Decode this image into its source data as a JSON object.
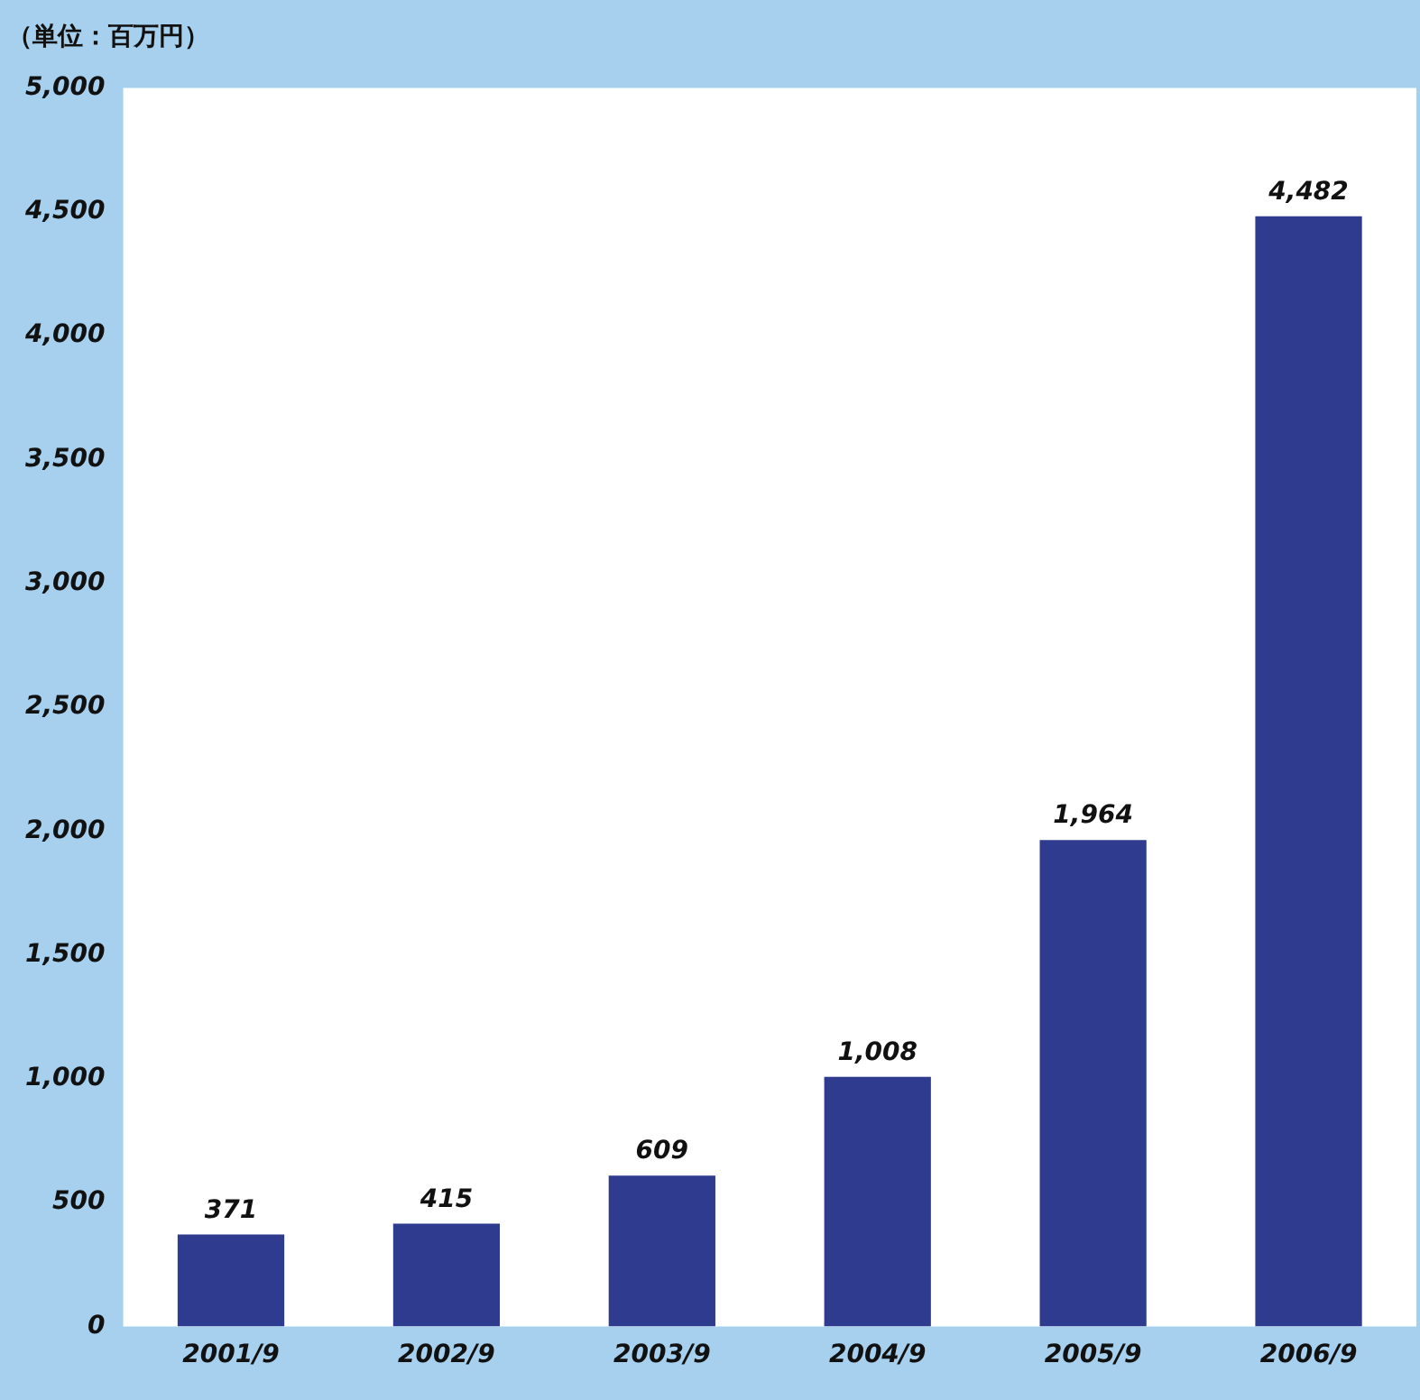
{
  "chart_data": {
    "type": "bar",
    "title": "（単位：百万円）",
    "categories": [
      "2001/9",
      "2002/9",
      "2003/9",
      "2004/9",
      "2005/9",
      "2006/9"
    ],
    "values": [
      371,
      415,
      609,
      1008,
      1964,
      4482
    ],
    "value_labels": [
      "371",
      "415",
      "609",
      "1,008",
      "1,964",
      "4,482"
    ],
    "color": "#2f3b8e",
    "ylim": [
      0,
      5000
    ],
    "yticks": [
      0,
      {
        "value": 500,
        "label": "500"
      },
      {
        "value": 1000,
        "label": "1,000"
      },
      {
        "value": 1500,
        "label": "1,500"
      },
      {
        "value": 2000,
        "label": "2,000"
      },
      {
        "value": 2500,
        "label": "2,500"
      },
      {
        "value": 3000,
        "label": "3,000"
      },
      {
        "value": 3500,
        "label": "3,500"
      },
      {
        "value": 4000,
        "label": "4,000"
      },
      {
        "value": 4500,
        "label": "4,500"
      },
      {
        "value": 5000,
        "label": "5,000"
      }
    ],
    "grid": false,
    "legend": false
  }
}
